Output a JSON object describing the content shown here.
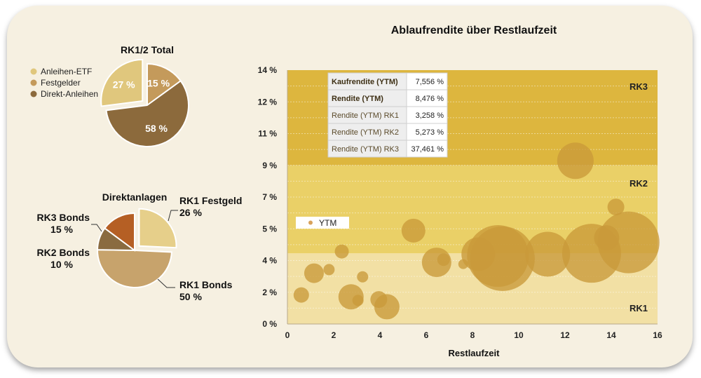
{
  "pie1": {
    "title": "RK1/2 Total",
    "legend": [
      {
        "label": "Anleihen-ETF",
        "color": "#e0c77d"
      },
      {
        "label": "Festgelder",
        "color": "#c49a5b"
      },
      {
        "label": "Direkt-Anleihen",
        "color": "#8c6a3c"
      }
    ],
    "slices": [
      {
        "name": "Festgelder",
        "value": 15,
        "label": "15 %",
        "color": "#c49a5b"
      },
      {
        "name": "Direkt-Anleihen",
        "value": 58,
        "label": "58 %",
        "color": "#8c6a3c"
      },
      {
        "name": "Anleihen-ETF",
        "value": 27,
        "label": "27 %",
        "color": "#e0c77d"
      }
    ]
  },
  "pie2": {
    "title": "Direktanlagen",
    "slices": [
      {
        "name": "RK1 Festgeld",
        "value": 26,
        "color": "#e6cf8a",
        "label1": "RK1 Festgeld",
        "label2": "26 %"
      },
      {
        "name": "RK1 Bonds",
        "value": 50,
        "color": "#c7a36c",
        "label1": "RK1 Bonds",
        "label2": "50 %"
      },
      {
        "name": "RK2 Bonds",
        "value": 10,
        "color": "#8a6b40",
        "label1": "RK2 Bonds",
        "label2": "10 %"
      },
      {
        "name": "RK3 Bonds",
        "value": 15,
        "color": "#b55f24",
        "label1": "RK3 Bonds",
        "label2": "15 %"
      }
    ]
  },
  "chart_data": {
    "type": "scatter",
    "title": "Ablaufrendite über Restlaufzeit",
    "xlabel": "Restlaufzeit",
    "ylabel": "",
    "xlim": [
      0,
      16
    ],
    "ylim": [
      0,
      14
    ],
    "xticks": [
      0,
      2,
      4,
      6,
      8,
      10,
      12,
      14,
      16
    ],
    "yticks": [
      {
        "v": 0,
        "label": "0 %"
      },
      {
        "v": 1.75,
        "label": "2 %"
      },
      {
        "v": 3.5,
        "label": "4 %"
      },
      {
        "v": 5.25,
        "label": "5 %"
      },
      {
        "v": 7,
        "label": "7 %"
      },
      {
        "v": 8.75,
        "label": "9 %"
      },
      {
        "v": 10.5,
        "label": "11 %"
      },
      {
        "v": 12.25,
        "label": "12 %"
      },
      {
        "v": 14,
        "label": "14 %"
      }
    ],
    "legend": {
      "label": "YTM",
      "color": "#d8a25c"
    },
    "bubble_color": "#c99a3a",
    "zones": [
      {
        "name": "RK1",
        "from": 0,
        "to": 3.9,
        "color": "#f2e0a4"
      },
      {
        "name": "RK2",
        "from": 3.9,
        "to": 8.75,
        "color": "#ead067"
      },
      {
        "name": "RK3",
        "from": 8.75,
        "to": 14,
        "color": "#ddb63e"
      }
    ],
    "series": [
      {
        "name": "YTM",
        "points": [
          {
            "x": 0.6,
            "y": 1.6,
            "r": 11
          },
          {
            "x": 1.15,
            "y": 2.8,
            "r": 14
          },
          {
            "x": 1.8,
            "y": 3.0,
            "r": 8
          },
          {
            "x": 2.35,
            "y": 4.0,
            "r": 10
          },
          {
            "x": 2.75,
            "y": 1.5,
            "r": 18
          },
          {
            "x": 3.05,
            "y": 1.3,
            "r": 8
          },
          {
            "x": 3.25,
            "y": 2.6,
            "r": 8
          },
          {
            "x": 3.95,
            "y": 1.35,
            "r": 12
          },
          {
            "x": 4.3,
            "y": 0.95,
            "r": 18
          },
          {
            "x": 5.45,
            "y": 5.15,
            "r": 17
          },
          {
            "x": 6.45,
            "y": 3.4,
            "r": 21
          },
          {
            "x": 6.75,
            "y": 3.55,
            "r": 9
          },
          {
            "x": 7.6,
            "y": 3.3,
            "r": 7
          },
          {
            "x": 8.25,
            "y": 3.85,
            "r": 24
          },
          {
            "x": 9.1,
            "y": 3.75,
            "r": 44
          },
          {
            "x": 9.3,
            "y": 3.6,
            "r": 46
          },
          {
            "x": 11.25,
            "y": 3.85,
            "r": 32
          },
          {
            "x": 12.45,
            "y": 9.0,
            "r": 26
          },
          {
            "x": 13.15,
            "y": 3.9,
            "r": 42
          },
          {
            "x": 13.8,
            "y": 4.75,
            "r": 18
          },
          {
            "x": 14.2,
            "y": 6.45,
            "r": 12
          },
          {
            "x": 14.75,
            "y": 4.5,
            "r": 44
          }
        ]
      }
    ],
    "table": [
      {
        "label": "Kaufrendite (YTM)",
        "value": "7,556 %",
        "bold": true
      },
      {
        "label": "Rendite (YTM)",
        "value": "8,476 %",
        "bold": true
      },
      {
        "label": "Rendite (YTM) RK1",
        "value": "3,258 %",
        "bold": false
      },
      {
        "label": "Rendite (YTM) RK2",
        "value": "5,273 %",
        "bold": false
      },
      {
        "label": "Rendite (YTM) RK3",
        "value": "37,461 %",
        "bold": false
      }
    ]
  }
}
